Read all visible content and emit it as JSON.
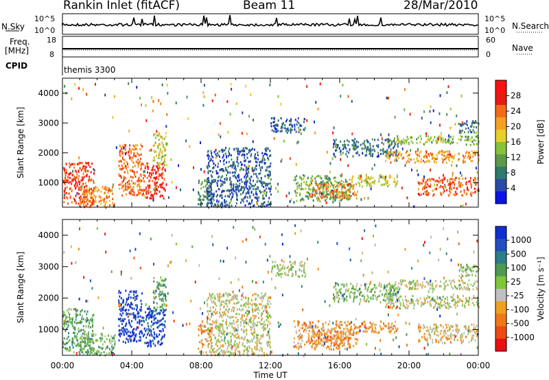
{
  "header": {
    "station": "Rankin Inlet (fitACF)",
    "beam": "Beam 11",
    "date": "28/Mar/2010"
  },
  "top_panels": {
    "nsky": {
      "left_label": "N.Sky",
      "left_ticks": [
        "10^5",
        "10^0"
      ],
      "right_label": "N.Search",
      "right_ticks": [
        "10^5",
        "10^0"
      ]
    },
    "freq": {
      "left_label": "Freq.",
      "left_unit": "[MHz]",
      "left_ticks": [
        "18",
        "8"
      ],
      "right_label": "Nave",
      "right_ticks": [
        "60",
        "0"
      ]
    },
    "cpid": {
      "label": "CPID",
      "value": "themis 3300"
    }
  },
  "chart_data": [
    {
      "type": "heatmap",
      "name": "power",
      "ylabel": "Slant Range [km]",
      "yticks": [
        1000,
        2000,
        3000,
        4000
      ],
      "ylim": [
        180,
        4500
      ],
      "xlim": [
        0,
        24
      ],
      "colorbar": {
        "label": "Power [dB]",
        "ticks": [
          4,
          8,
          12,
          16,
          20,
          24,
          28
        ],
        "colors": [
          "#0a14e6",
          "#2a4aaa",
          "#2f7a6a",
          "#5c9a4a",
          "#86c23a",
          "#e8d02a",
          "#f5a020",
          "#f56a18",
          "#e81a10",
          "#ff1010"
        ]
      },
      "regions": [
        {
          "t": [
            0.0,
            1.8
          ],
          "r": [
            300,
            1700
          ],
          "level": 0.85
        },
        {
          "t": [
            1.0,
            3.0
          ],
          "r": [
            200,
            900
          ],
          "level": 0.7
        },
        {
          "t": [
            3.2,
            4.6
          ],
          "r": [
            600,
            2300
          ],
          "level": 0.75
        },
        {
          "t": [
            4.6,
            5.9
          ],
          "r": [
            500,
            1700
          ],
          "level": 0.9
        },
        {
          "t": [
            5.2,
            6.0
          ],
          "r": [
            1600,
            2700
          ],
          "level": 0.5
        },
        {
          "t": [
            7.8,
            8.6
          ],
          "r": [
            300,
            1200
          ],
          "level": 0.3
        },
        {
          "t": [
            8.3,
            12.0
          ],
          "r": [
            200,
            2200
          ],
          "level": 0.15
        },
        {
          "t": [
            12.0,
            14.0
          ],
          "r": [
            2700,
            3200
          ],
          "level": 0.15
        },
        {
          "t": [
            13.3,
            16.6
          ],
          "r": [
            400,
            1300
          ],
          "level": 0.35
        },
        {
          "t": [
            14.2,
            17.0
          ],
          "r": [
            500,
            1000
          ],
          "level": 0.75
        },
        {
          "t": [
            16.5,
            19.3
          ],
          "r": [
            900,
            1300
          ],
          "level": 0.55
        },
        {
          "t": [
            15.6,
            19.4
          ],
          "r": [
            1900,
            2500
          ],
          "level": 0.2
        },
        {
          "t": [
            18.6,
            24.0
          ],
          "r": [
            1700,
            2100
          ],
          "level": 0.7
        },
        {
          "t": [
            18.8,
            24.0
          ],
          "r": [
            2300,
            2600
          ],
          "level": 0.4
        },
        {
          "t": [
            20.5,
            24.0
          ],
          "r": [
            600,
            1200
          ],
          "level": 0.8
        },
        {
          "t": [
            22.8,
            24.0
          ],
          "r": [
            2700,
            3100
          ],
          "level": 0.2
        }
      ]
    },
    {
      "type": "heatmap",
      "name": "velocity",
      "ylabel": "Slant Range [km]",
      "xlabel": "Time UT",
      "xticks": [
        "00:00",
        "04:00",
        "08:00",
        "12:00",
        "16:00",
        "20:00",
        "00:00"
      ],
      "xlim": [
        0,
        24
      ],
      "yticks": [
        1000,
        2000,
        3000,
        4000
      ],
      "ylim": [
        180,
        4500
      ],
      "colorbar": {
        "label": "Velocity [m s⁻¹]",
        "ticks": [
          1000,
          500,
          100,
          25,
          -25,
          -100,
          -500,
          -1000
        ],
        "colors": [
          "#1030d0",
          "#2050c0",
          "#2a7f8a",
          "#4e9a50",
          "#7dc83a",
          "#c0c0c0",
          "#f0a020",
          "#f07818",
          "#f04a14",
          "#e81010"
        ]
      },
      "regions": [
        {
          "t": [
            0.0,
            1.8
          ],
          "r": [
            300,
            1700
          ],
          "level": 0.35
        },
        {
          "t": [
            1.0,
            3.0
          ],
          "r": [
            200,
            900
          ],
          "level": 0.4
        },
        {
          "t": [
            3.2,
            4.6
          ],
          "r": [
            600,
            2300
          ],
          "level": 0.02
        },
        {
          "t": [
            4.6,
            5.9
          ],
          "r": [
            500,
            1700
          ],
          "level": 0.05
        },
        {
          "t": [
            5.2,
            6.0
          ],
          "r": [
            1600,
            2700
          ],
          "level": 0.35
        },
        {
          "t": [
            7.8,
            8.6
          ],
          "r": [
            300,
            1200
          ],
          "level": 0.7
        },
        {
          "t": [
            8.3,
            12.0
          ],
          "r": [
            200,
            2200
          ],
          "level": 0.55
        },
        {
          "t": [
            12.0,
            14.0
          ],
          "r": [
            2700,
            3200
          ],
          "level": 0.5
        },
        {
          "t": [
            13.3,
            16.6
          ],
          "r": [
            400,
            1300
          ],
          "level": 0.68
        },
        {
          "t": [
            14.2,
            17.0
          ],
          "r": [
            500,
            1000
          ],
          "level": 0.72
        },
        {
          "t": [
            16.5,
            19.3
          ],
          "r": [
            900,
            1300
          ],
          "level": 0.68
        },
        {
          "t": [
            15.6,
            19.4
          ],
          "r": [
            1900,
            2500
          ],
          "level": 0.45
        },
        {
          "t": [
            18.6,
            24.0
          ],
          "r": [
            1700,
            2100
          ],
          "level": 0.52
        },
        {
          "t": [
            18.8,
            24.0
          ],
          "r": [
            2300,
            2600
          ],
          "level": 0.52
        },
        {
          "t": [
            20.5,
            24.0
          ],
          "r": [
            600,
            1200
          ],
          "level": 0.62
        },
        {
          "t": [
            22.8,
            24.0
          ],
          "r": [
            2700,
            3100
          ],
          "level": 0.45
        }
      ]
    }
  ]
}
